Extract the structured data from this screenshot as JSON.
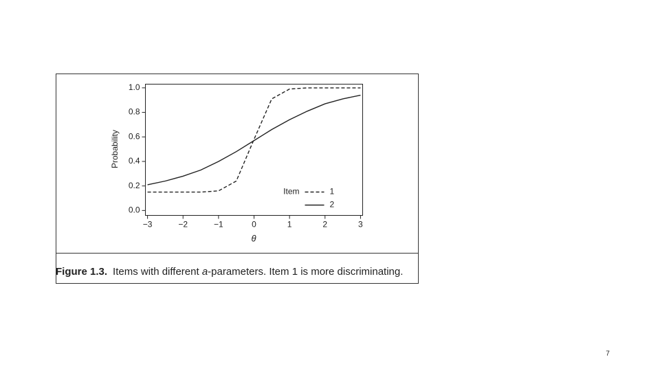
{
  "chart_data": {
    "type": "line",
    "x_label": "θ",
    "y_label": "Probability",
    "x": [
      -3,
      -2.5,
      -2,
      -1.5,
      -1,
      -0.5,
      0,
      0.5,
      1,
      1.5,
      2,
      2.5,
      3
    ],
    "series": [
      {
        "name": "1",
        "color": "#222222",
        "linestyle": "dashed",
        "values": [
          0.15,
          0.15,
          0.15,
          0.15,
          0.16,
          0.24,
          0.58,
          0.91,
          0.99,
          1.0,
          1.0,
          1.0,
          1.0
        ]
      },
      {
        "name": "2",
        "color": "#222222",
        "linestyle": "solid",
        "values": [
          0.21,
          0.24,
          0.28,
          0.33,
          0.4,
          0.48,
          0.57,
          0.66,
          0.74,
          0.81,
          0.87,
          0.91,
          0.94
        ]
      }
    ],
    "legend_title": "Item",
    "legend": "lower right",
    "xlim": [
      -3.06,
      3.06
    ],
    "xticks": [
      {
        "value": -3,
        "label": "−3"
      },
      {
        "value": -2,
        "label": "−2"
      },
      {
        "value": -1,
        "label": "−1"
      },
      0,
      1,
      2,
      3
    ],
    "ylim": [
      -0.04,
      1.03
    ],
    "yticks": [
      {
        "value": 0,
        "label": "0.0"
      },
      0.2,
      0.4,
      0.6,
      0.8,
      {
        "value": 1,
        "label": "1.0"
      }
    ],
    "grid": false
  },
  "figure": {
    "label": "Figure 1.3.",
    "caption_before": "Items with different ",
    "caption_italic": "a",
    "caption_after": "-parameters. Item 1 is more discriminating."
  },
  "page_number": "7"
}
